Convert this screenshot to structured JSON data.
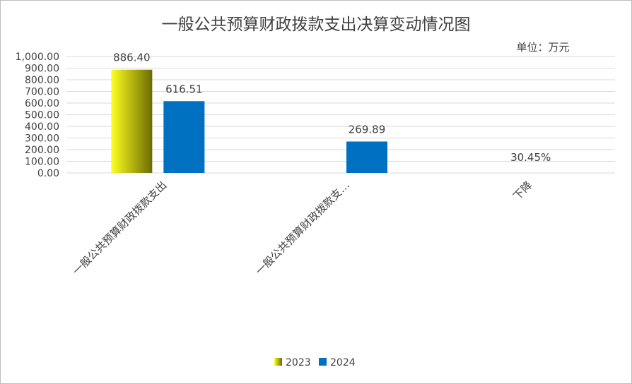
{
  "chart_data": {
    "type": "bar",
    "title": "一般公共预算财政拨款支出决算变动情况图",
    "unit_label": "单位：万元",
    "categories": [
      "一般公共预算财政拨款支出",
      "一般公共预算财政拨款支…",
      "下降"
    ],
    "series": [
      {
        "name": "2023",
        "values": [
          886.4,
          null,
          null
        ],
        "labels": [
          "886.40",
          "",
          ""
        ]
      },
      {
        "name": "2024",
        "values": [
          616.51,
          269.89,
          null
        ],
        "labels": [
          "616.51",
          "269.89",
          ""
        ]
      }
    ],
    "extra_labels": [
      {
        "category_index": 2,
        "text": "30.45%"
      }
    ],
    "ylim": [
      0,
      1000
    ],
    "yticks": [
      0,
      100,
      200,
      300,
      400,
      500,
      600,
      700,
      800,
      900,
      1000
    ],
    "ytick_labels": [
      "0.00",
      "100.00",
      "200.00",
      "300.00",
      "400.00",
      "500.00",
      "600.00",
      "700.00",
      "800.00",
      "900.00",
      "1,000.00"
    ],
    "grid": true,
    "legend_position": "bottom",
    "colors": {
      "2023_light": "#ffff22",
      "2023_dark": "#6b6b00",
      "2024": "#0070c0",
      "grid": "#d9d9d9",
      "text": "#404040"
    }
  }
}
